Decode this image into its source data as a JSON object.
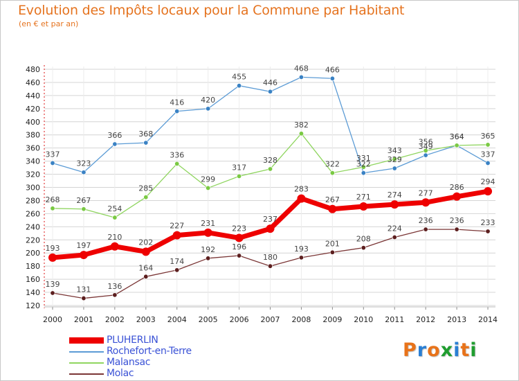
{
  "title": "Evolution des Impôts locaux pour la Commune par Habitant",
  "subtitle": "(en € et par an)",
  "logo": {
    "text": "Proxiti",
    "colors": [
      "#e8731a",
      "#2a7fd4",
      "#e8731a",
      "#1f9d2f",
      "#2a7fd4",
      "#e8731a",
      "#1f9d2f"
    ]
  },
  "chart_data": {
    "type": "line",
    "title": "Evolution des Impôts locaux pour la Commune par Habitant",
    "subtitle": "(en € et par an)",
    "xlabel": "",
    "ylabel": "",
    "categories": [
      "2000",
      "2001",
      "2002",
      "2003",
      "2004",
      "2005",
      "2006",
      "2007",
      "2008",
      "2009",
      "2010",
      "2011",
      "2012",
      "2013",
      "2014"
    ],
    "ylim": [
      120,
      480
    ],
    "yticks": [
      120,
      140,
      160,
      180,
      200,
      220,
      240,
      260,
      280,
      300,
      320,
      340,
      360,
      380,
      400,
      420,
      440,
      460,
      480
    ],
    "grid": "horizontal",
    "legend_position": "bottom-left",
    "series": [
      {
        "name": "Rochefort-en-Terre",
        "color": "#5b9bd5",
        "marker": "#3a82c4",
        "values": [
          337,
          323,
          366,
          368,
          416,
          420,
          455,
          446,
          468,
          466,
          322,
          329,
          349,
          364,
          337
        ]
      },
      {
        "name": "Malansac",
        "color": "#8fd55f",
        "marker": "#7ac943",
        "values": [
          268,
          267,
          254,
          285,
          336,
          299,
          317,
          328,
          382,
          322,
          331,
          343,
          356,
          364,
          365
        ]
      },
      {
        "name": "Molac",
        "color": "#7a3535",
        "marker": "#5c1e1e",
        "values": [
          139,
          131,
          136,
          164,
          174,
          192,
          196,
          180,
          193,
          201,
          208,
          224,
          236,
          236,
          233
        ]
      },
      {
        "name": "PLUHERLIN",
        "color": "#ee0000",
        "marker": "#ee0000",
        "values": [
          193,
          197,
          210,
          202,
          227,
          231,
          223,
          237,
          283,
          267,
          271,
          274,
          277,
          286,
          294
        ]
      }
    ],
    "legend": [
      "PLUHERLIN",
      "Rochefort-en-Terre",
      "Malansac",
      "Molac"
    ]
  }
}
